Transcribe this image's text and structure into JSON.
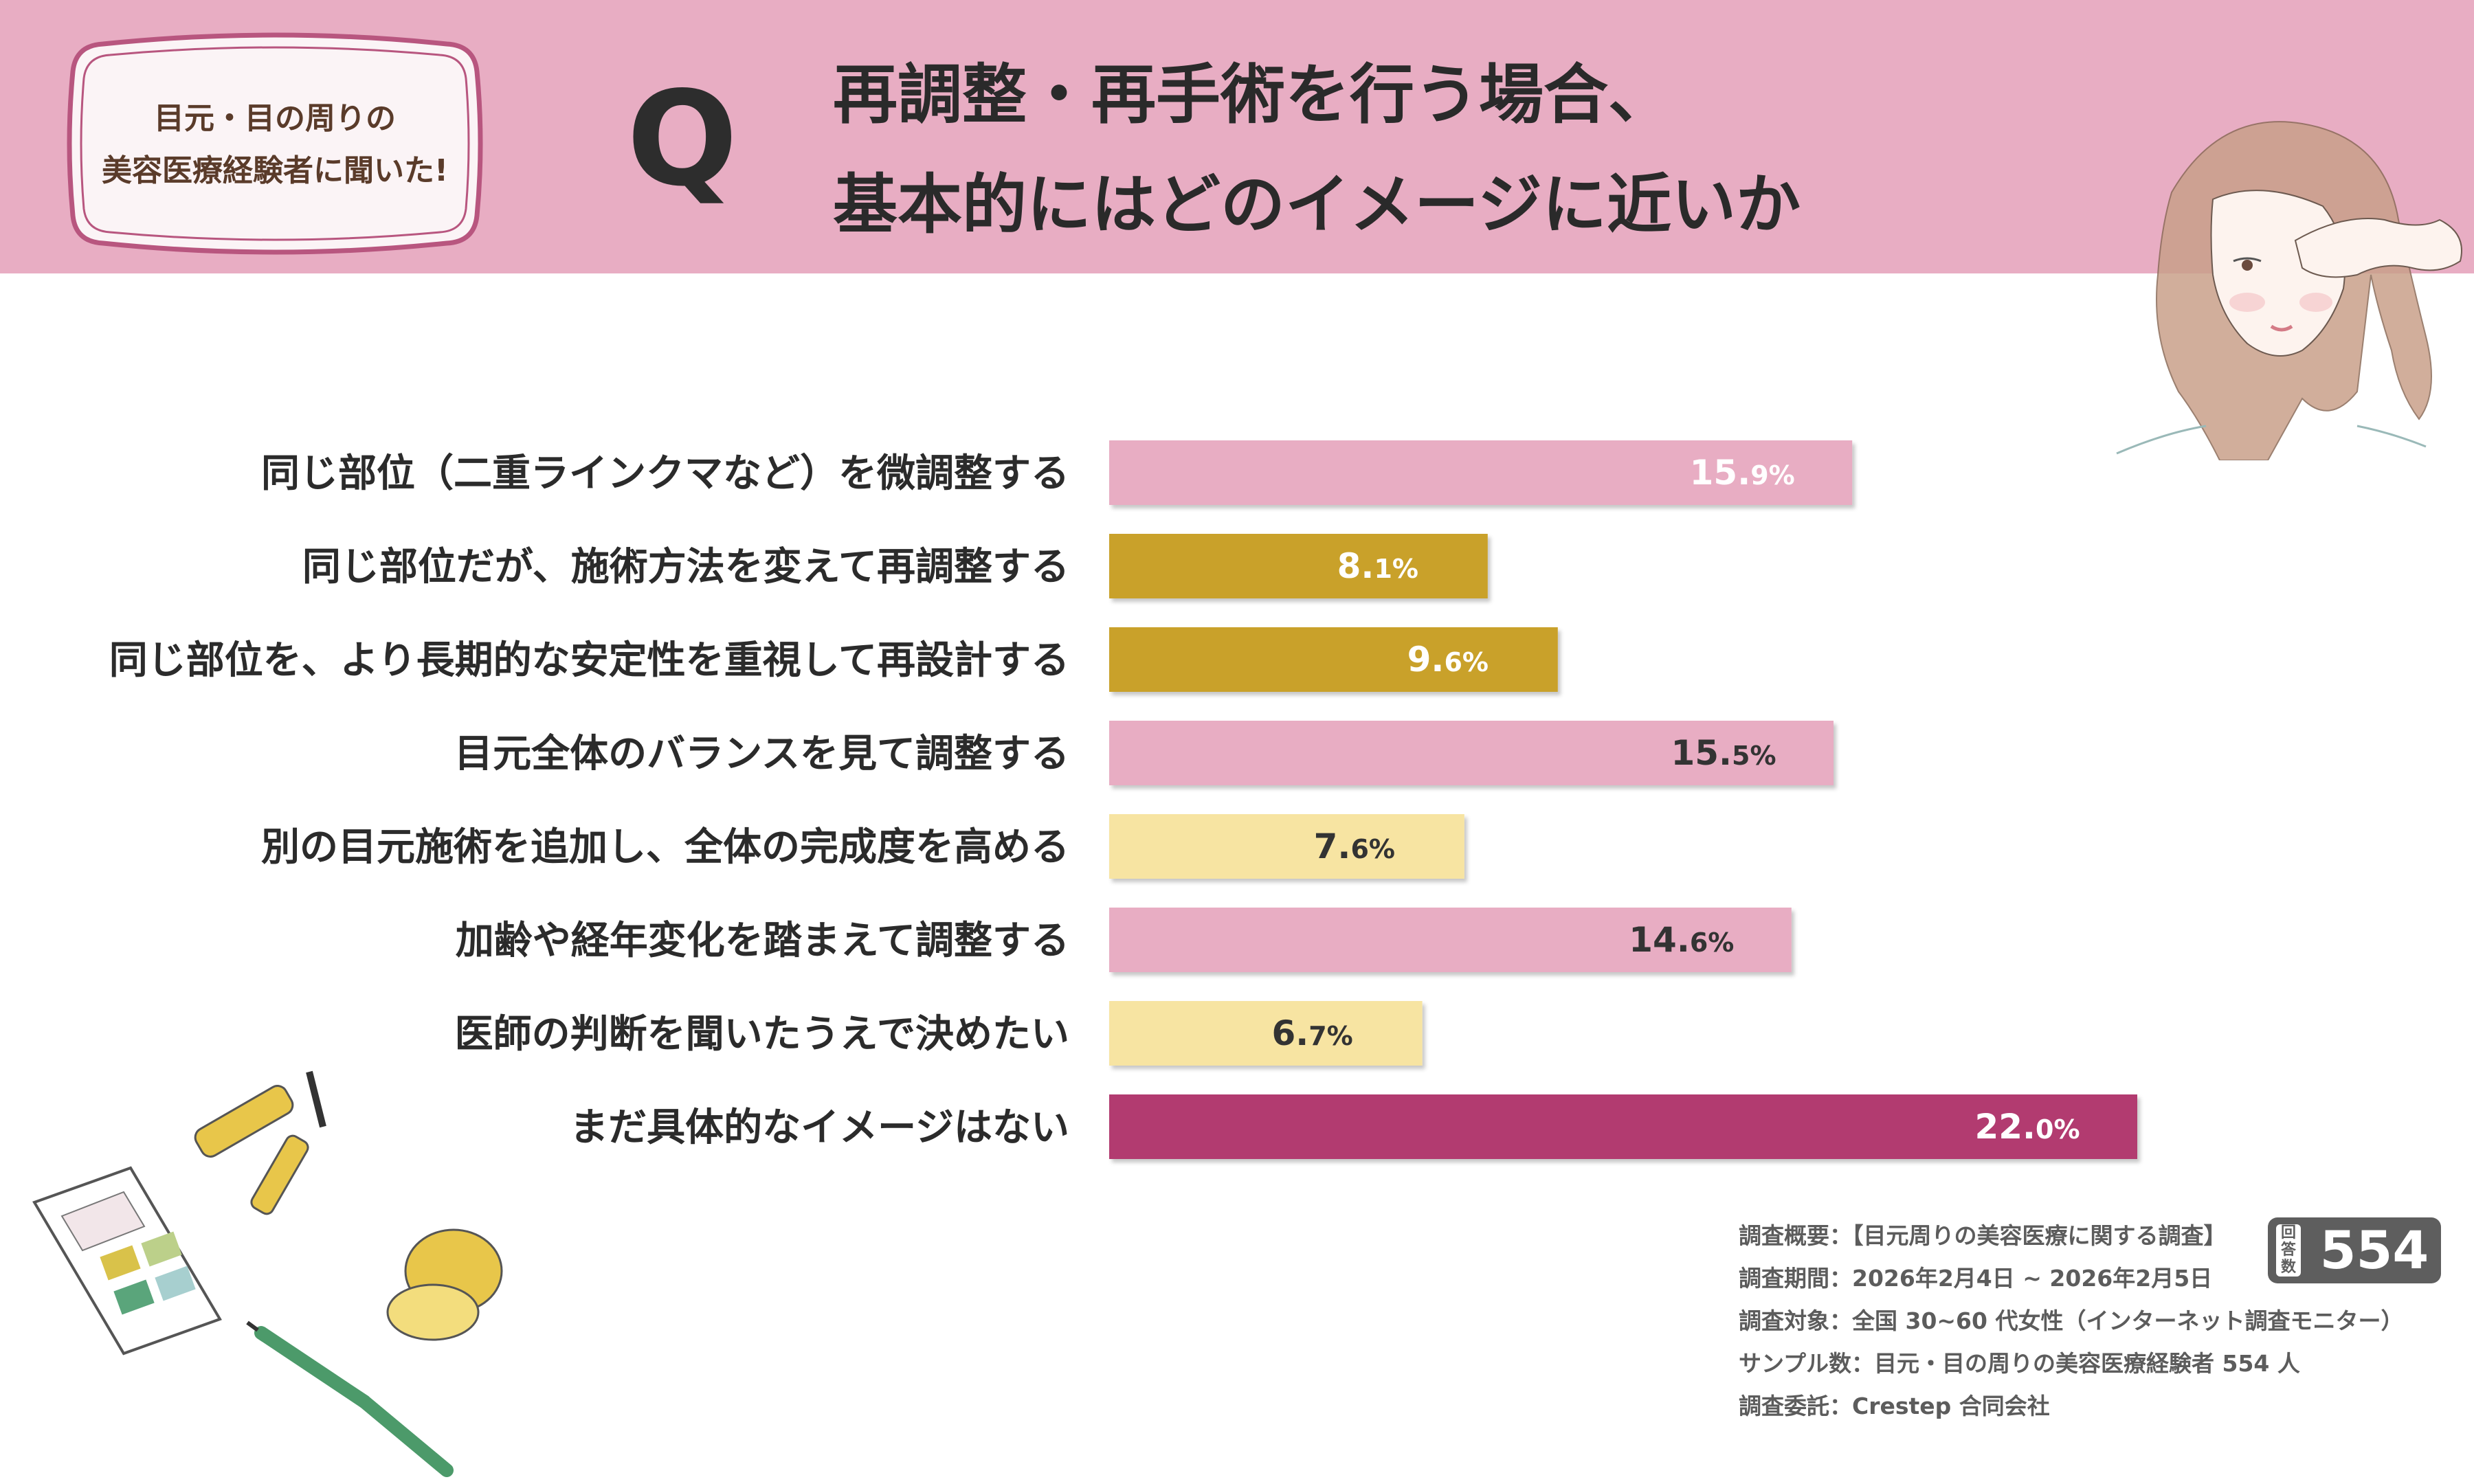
{
  "header": {
    "badge_line1": "目元・目の周りの",
    "badge_line2": "美容医療経験者に聞いた!",
    "q_letter": "Q",
    "question_line1": "再調整・再手術を行う場合、",
    "question_line2": "基本的にはどのイメージに近いか"
  },
  "colors": {
    "header_bg": "#e8adc3",
    "pink": "#e8adc3",
    "mustard": "#c9a12a",
    "cream": "#f7e4a2",
    "magenta": "#b23a6f",
    "badge_border": "#b8567f"
  },
  "chart_data": {
    "type": "bar",
    "orientation": "horizontal",
    "categories": [
      "同じ部位（二重ラインクマなど）を微調整する",
      "同じ部位だが、施術方法を変えて再調整する",
      "同じ部位を、より長期的な安定性を重視して再設計する",
      "目元全体のバランスを見て調整する",
      "別の目元施術を追加し、全体の完成度を高める",
      "加齢や経年変化を踏まえて調整する",
      "医師の判断を聞いたうえで決めたい",
      "まだ具体的なイメージはない"
    ],
    "values": [
      15.9,
      8.1,
      9.6,
      15.5,
      7.6,
      14.6,
      6.7,
      22.0
    ],
    "labels": [
      "15.9%",
      "8.1%",
      "9.6%",
      "15.5%",
      "7.6%",
      "14.6%",
      "6.7%",
      "22.0%"
    ],
    "bar_colors": [
      "#e8adc3",
      "#c9a12a",
      "#c9a12a",
      "#e8adc3",
      "#f7e4a2",
      "#e8adc3",
      "#f7e4a2",
      "#b23a6f"
    ],
    "label_colors": [
      "#ffffff",
      "#ffffff",
      "#ffffff",
      "#333333",
      "#333333",
      "#333333",
      "#333333",
      "#ffffff"
    ],
    "unit": "%",
    "xlim": [
      0,
      22.0
    ],
    "grid": false,
    "title": "",
    "xlabel": "",
    "ylabel": ""
  },
  "survey": {
    "line1": "調査概要：【目元周りの美容医療に関する調査】",
    "line2": "調査期間：2026年2月4日 ~ 2026年2月5日",
    "line3": "調査対象：全国 30~60 代女性（インターネット調査モニター）",
    "line4": "サンプル数：目元・目の周りの美容医療経験者 554 人",
    "line5": "調査委託：Crestep 合同会社"
  },
  "respondents": {
    "label": "回答数",
    "count": "554"
  },
  "illustrations": {
    "woman": "woman-touching-eye-illustration",
    "cosmetics": "cosmetics-illustration"
  }
}
